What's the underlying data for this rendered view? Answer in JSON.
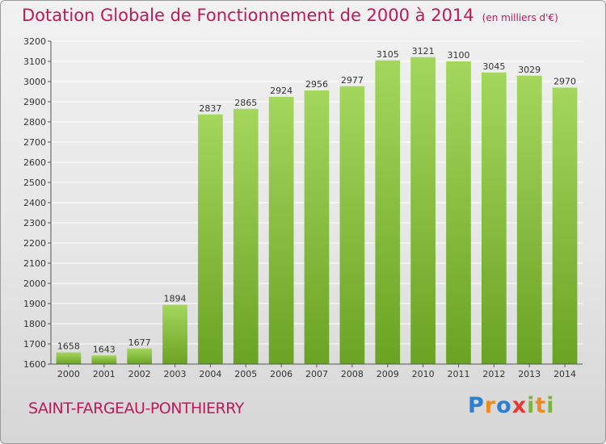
{
  "title": "Dotation Globale de Fonctionnement de 2000 à 2014",
  "unit": "(en milliers d'€)",
  "city": "SAINT-FARGEAU-PONTHIERRY",
  "logo": {
    "letters": [
      {
        "ch": "P",
        "color": "#2f7fd0"
      },
      {
        "ch": "r",
        "color": "#f08a1c"
      },
      {
        "ch": "o",
        "color": "#2f7fd0"
      },
      {
        "ch": "x",
        "color": "#e53935"
      },
      {
        "ch": "i",
        "color": "#7cb342"
      },
      {
        "ch": "t",
        "color": "#f08a1c"
      },
      {
        "ch": "i",
        "color": "#7cb342"
      }
    ]
  },
  "colors": {
    "title": "#c2185b",
    "bar_light": "#a4d65e",
    "bar_dark": "#6aa323",
    "grid": "#ffffff"
  },
  "chart_data": {
    "type": "bar",
    "categories": [
      "2000",
      "2001",
      "2002",
      "2003",
      "2004",
      "2005",
      "2006",
      "2007",
      "2008",
      "2009",
      "2010",
      "2011",
      "2012",
      "2013",
      "2014"
    ],
    "values": [
      1658,
      1643,
      1677,
      1894,
      2837,
      2865,
      2924,
      2956,
      2977,
      3105,
      3121,
      3100,
      3045,
      3029,
      2970
    ],
    "ylim": [
      1600,
      3200
    ],
    "yticks": [
      1600,
      1700,
      1800,
      1900,
      2000,
      2100,
      2200,
      2300,
      2400,
      2500,
      2600,
      2700,
      2800,
      2900,
      3000,
      3100,
      3200
    ],
    "grid": true,
    "data_labels": true
  }
}
